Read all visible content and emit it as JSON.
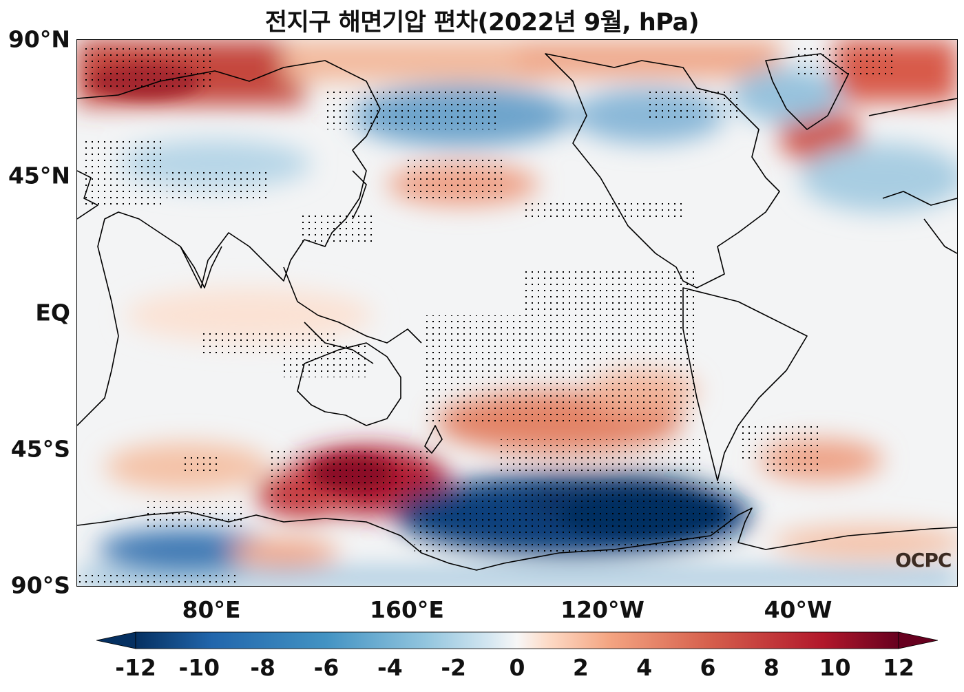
{
  "title": "전지구 해면기압 편차(2022년 9월, hPa)",
  "watermark": "OCPC",
  "lat_labels": [
    "90°N",
    "45°N",
    "EQ",
    "45°S",
    "90°S"
  ],
  "lon_labels": [
    "80°E",
    "160°E",
    "120°W",
    "40°W"
  ],
  "colorbar": {
    "min": -12,
    "max": 12,
    "extend": "both",
    "ticks": [
      "-12",
      "-10",
      "-8",
      "-6",
      "-4",
      "-2",
      "0",
      "2",
      "4",
      "6",
      "8",
      "10",
      "12"
    ],
    "low_color": "#053061",
    "high_color": "#67001f",
    "mid_color": "#f7f7f7"
  },
  "projection": "PlateCarree, central longitude 200°",
  "anomaly_centers": [
    {
      "region": "Southern Ocean south of Australia",
      "value": 11
    },
    {
      "region": "Southeast Pacific near Antarctica (Amundsen Sea)",
      "value": -12
    },
    {
      "region": "Arctic (north of Siberia)",
      "value": 6
    },
    {
      "region": "Southwest Pacific",
      "value": 6
    },
    {
      "region": "Greenland south coast",
      "value": 6
    },
    {
      "region": "North Pacific",
      "value": 4
    },
    {
      "region": "Bering Sea / Alaska",
      "value": -4
    },
    {
      "region": "Weddell / Indian sector of Antarctica",
      "value": -8
    },
    {
      "region": "South Atlantic",
      "value": 4
    }
  ]
}
